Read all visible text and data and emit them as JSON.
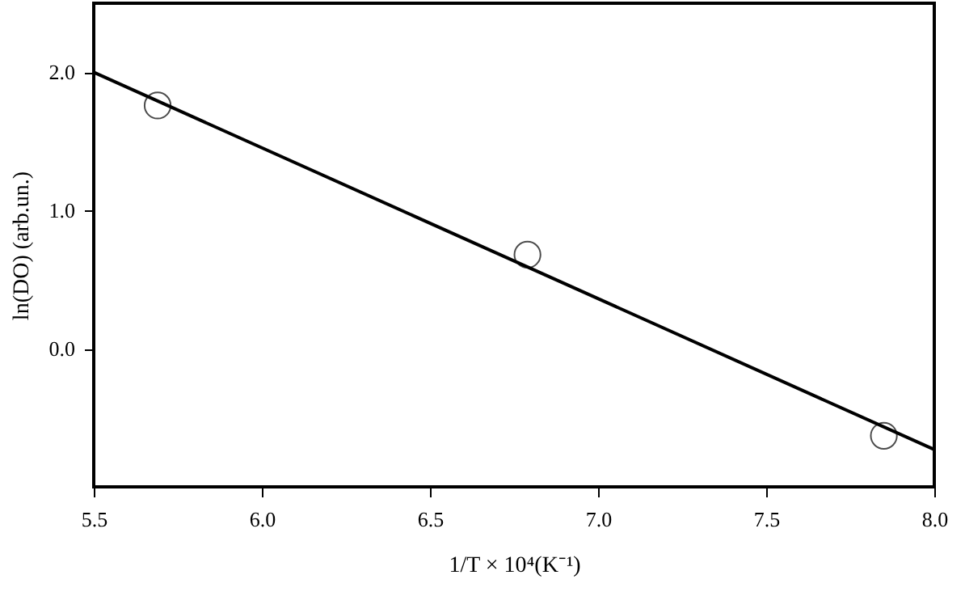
{
  "chart_data": {
    "type": "scatter",
    "xlabel": "1/T × 10⁴(K⁻¹)",
    "ylabel": "ln(DO) (arb.un.)",
    "xlim": [
      5.5,
      8.0
    ],
    "ylim": [
      -1.0,
      2.5
    ],
    "xticks": [
      5.5,
      {
        "value": 6,
        "label": "6.0"
      },
      6.5,
      {
        "value": 7,
        "label": "7.0"
      },
      7.5,
      {
        "value": 8,
        "label": "8.0"
      }
    ],
    "yticks": [
      {
        "value": 0,
        "label": "0.0"
      },
      {
        "value": 1,
        "label": "1.0"
      },
      {
        "value": 2,
        "label": "2.0"
      }
    ],
    "grid": false,
    "series": [
      {
        "color": "#000000",
        "marker": "circle",
        "x": [
          5.69,
          6.79,
          7.85
        ],
        "values": [
          1.76,
          0.68,
          -0.63
        ]
      },
      {
        "type": "line",
        "color": "#000000",
        "x": [
          5.5,
          8.0
        ],
        "values": [
          2.0,
          -0.73
        ],
        "marker": "none",
        "line_style": "solid"
      }
    ]
  }
}
